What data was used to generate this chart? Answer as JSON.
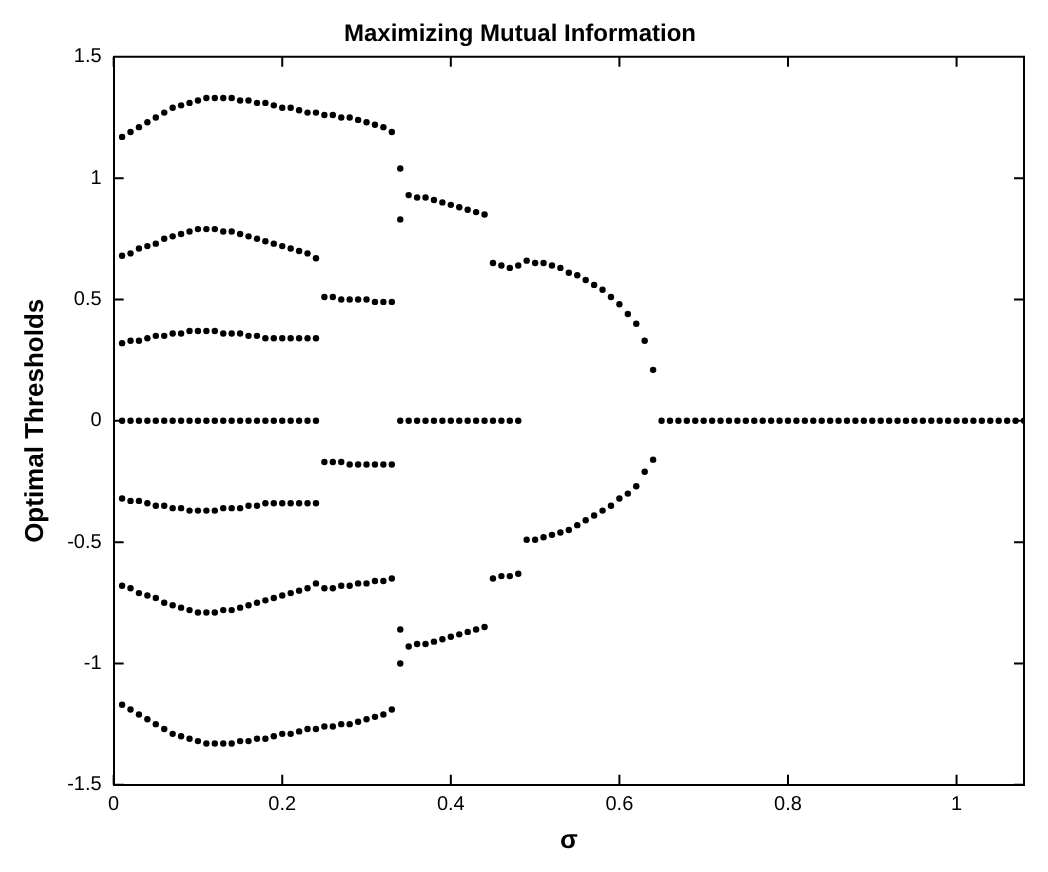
{
  "chart_data": {
    "type": "scatter",
    "title": "Maximizing Mutual Information",
    "xlabel": "σ",
    "ylabel": "Optimal Thresholds",
    "xlim": [
      0,
      1.08
    ],
    "ylim": [
      -1.5,
      1.5
    ],
    "xticks": [
      0,
      0.2,
      0.4,
      0.6,
      0.8,
      1
    ],
    "yticks": [
      -1.5,
      -1,
      -0.5,
      0,
      0.5,
      1,
      1.5
    ],
    "grid": false,
    "legend": false,
    "marker": "circle",
    "series": [
      {
        "color": "#000000",
        "x": [
          0.01,
          0.02,
          0.03,
          0.04,
          0.05,
          0.06,
          0.07,
          0.08,
          0.09,
          0.1,
          0.11,
          0.12,
          0.13,
          0.14,
          0.15,
          0.16,
          0.17,
          0.18,
          0.19,
          0.2,
          0.21,
          0.22,
          0.23,
          0.24,
          0.25,
          0.26,
          0.27,
          0.28,
          0.29,
          0.3,
          0.31,
          0.32,
          0.33
        ],
        "values": [
          1.17,
          1.19,
          1.21,
          1.23,
          1.25,
          1.27,
          1.29,
          1.3,
          1.31,
          1.32,
          1.33,
          1.33,
          1.33,
          1.33,
          1.32,
          1.32,
          1.31,
          1.31,
          1.3,
          1.29,
          1.29,
          1.28,
          1.27,
          1.27,
          1.26,
          1.26,
          1.25,
          1.25,
          1.24,
          1.23,
          1.22,
          1.21,
          1.19
        ]
      },
      {
        "color": "#000000",
        "x": [
          0.01,
          0.02,
          0.03,
          0.04,
          0.05,
          0.06,
          0.07,
          0.08,
          0.09,
          0.1,
          0.11,
          0.12,
          0.13,
          0.14,
          0.15,
          0.16,
          0.17,
          0.18,
          0.19,
          0.2,
          0.21,
          0.22,
          0.23,
          0.24,
          0.25,
          0.26,
          0.27,
          0.28,
          0.29,
          0.3,
          0.31,
          0.32,
          0.33
        ],
        "values": [
          -1.17,
          -1.19,
          -1.21,
          -1.23,
          -1.25,
          -1.27,
          -1.29,
          -1.3,
          -1.31,
          -1.32,
          -1.33,
          -1.33,
          -1.33,
          -1.33,
          -1.32,
          -1.32,
          -1.31,
          -1.31,
          -1.3,
          -1.29,
          -1.29,
          -1.28,
          -1.27,
          -1.27,
          -1.26,
          -1.26,
          -1.25,
          -1.25,
          -1.24,
          -1.23,
          -1.22,
          -1.21,
          -1.19
        ]
      },
      {
        "color": "#000000",
        "x": [
          0.01,
          0.02,
          0.03,
          0.04,
          0.05,
          0.06,
          0.07,
          0.08,
          0.09,
          0.1,
          0.11,
          0.12,
          0.13,
          0.14,
          0.15,
          0.16,
          0.17,
          0.18,
          0.19,
          0.2,
          0.21,
          0.22,
          0.23,
          0.24
        ],
        "values": [
          0.68,
          0.69,
          0.71,
          0.72,
          0.73,
          0.75,
          0.76,
          0.77,
          0.78,
          0.79,
          0.79,
          0.79,
          0.78,
          0.78,
          0.77,
          0.76,
          0.75,
          0.74,
          0.73,
          0.72,
          0.71,
          0.7,
          0.69,
          0.67
        ]
      },
      {
        "color": "#000000",
        "x": [
          0.01,
          0.02,
          0.03,
          0.04,
          0.05,
          0.06,
          0.07,
          0.08,
          0.09,
          0.1,
          0.11,
          0.12,
          0.13,
          0.14,
          0.15,
          0.16,
          0.17,
          0.18,
          0.19,
          0.2,
          0.21,
          0.22,
          0.23,
          0.24
        ],
        "values": [
          -0.68,
          -0.69,
          -0.71,
          -0.72,
          -0.73,
          -0.75,
          -0.76,
          -0.77,
          -0.78,
          -0.79,
          -0.79,
          -0.79,
          -0.78,
          -0.78,
          -0.77,
          -0.76,
          -0.75,
          -0.74,
          -0.73,
          -0.72,
          -0.71,
          -0.7,
          -0.69,
          -0.67
        ]
      },
      {
        "color": "#000000",
        "x": [
          0.01,
          0.02,
          0.03,
          0.04,
          0.05,
          0.06,
          0.07,
          0.08,
          0.09,
          0.1,
          0.11,
          0.12,
          0.13,
          0.14,
          0.15,
          0.16,
          0.17,
          0.18,
          0.19,
          0.2,
          0.21,
          0.22,
          0.23,
          0.24
        ],
        "values": [
          0.32,
          0.33,
          0.33,
          0.34,
          0.35,
          0.35,
          0.36,
          0.36,
          0.37,
          0.37,
          0.37,
          0.37,
          0.36,
          0.36,
          0.36,
          0.35,
          0.35,
          0.34,
          0.34,
          0.34,
          0.34,
          0.34,
          0.34,
          0.34
        ]
      },
      {
        "color": "#000000",
        "x": [
          0.01,
          0.02,
          0.03,
          0.04,
          0.05,
          0.06,
          0.07,
          0.08,
          0.09,
          0.1,
          0.11,
          0.12,
          0.13,
          0.14,
          0.15,
          0.16,
          0.17,
          0.18,
          0.19,
          0.2,
          0.21,
          0.22,
          0.23,
          0.24
        ],
        "values": [
          -0.32,
          -0.33,
          -0.33,
          -0.34,
          -0.35,
          -0.35,
          -0.36,
          -0.36,
          -0.37,
          -0.37,
          -0.37,
          -0.37,
          -0.36,
          -0.36,
          -0.36,
          -0.35,
          -0.35,
          -0.34,
          -0.34,
          -0.34,
          -0.34,
          -0.34,
          -0.34,
          -0.34
        ]
      },
      {
        "color": "#000000",
        "x": [
          0.01,
          0.02,
          0.03,
          0.04,
          0.05,
          0.06,
          0.07,
          0.08,
          0.09,
          0.1,
          0.11,
          0.12,
          0.13,
          0.14,
          0.15,
          0.16,
          0.17,
          0.18,
          0.19,
          0.2,
          0.21,
          0.22,
          0.23,
          0.24
        ],
        "values": [
          0,
          0,
          0,
          0,
          0,
          0,
          0,
          0,
          0,
          0,
          0,
          0,
          0,
          0,
          0,
          0,
          0,
          0,
          0,
          0,
          0,
          0,
          0,
          0
        ]
      },
      {
        "color": "#000000",
        "x": [
          0.25,
          0.26,
          0.27,
          0.28,
          0.29,
          0.3,
          0.31,
          0.32,
          0.33
        ],
        "values": [
          0.51,
          0.51,
          0.5,
          0.5,
          0.5,
          0.5,
          0.49,
          0.49,
          0.49
        ]
      },
      {
        "color": "#000000",
        "x": [
          0.25,
          0.26,
          0.27,
          0.28,
          0.29,
          0.3,
          0.31,
          0.32,
          0.33
        ],
        "values": [
          -0.17,
          -0.17,
          -0.17,
          -0.18,
          -0.18,
          -0.18,
          -0.18,
          -0.18,
          -0.18
        ]
      },
      {
        "color": "#000000",
        "x": [
          0.25,
          0.26,
          0.27,
          0.28,
          0.29,
          0.3,
          0.31,
          0.32,
          0.33
        ],
        "values": [
          -0.69,
          -0.69,
          -0.68,
          -0.68,
          -0.67,
          -0.67,
          -0.66,
          -0.66,
          -0.65
        ]
      },
      {
        "color": "#000000",
        "x": [
          0.34,
          0.34,
          0.34,
          0.34
        ],
        "values": [
          1.04,
          0.83,
          -0.86,
          -1.0
        ]
      },
      {
        "color": "#000000",
        "x": [
          0.35,
          0.36,
          0.37,
          0.38,
          0.39,
          0.4,
          0.41,
          0.42,
          0.43,
          0.44
        ],
        "values": [
          0.93,
          0.92,
          0.92,
          0.91,
          0.9,
          0.89,
          0.88,
          0.87,
          0.86,
          0.85
        ]
      },
      {
        "color": "#000000",
        "x": [
          0.35,
          0.36,
          0.37,
          0.38,
          0.39,
          0.4,
          0.41,
          0.42,
          0.43,
          0.44
        ],
        "values": [
          -0.93,
          -0.92,
          -0.92,
          -0.91,
          -0.9,
          -0.89,
          -0.88,
          -0.87,
          -0.86,
          -0.85
        ]
      },
      {
        "color": "#000000",
        "x": [
          0.34,
          0.35,
          0.36,
          0.37,
          0.38,
          0.39,
          0.4,
          0.41,
          0.42,
          0.43,
          0.44,
          0.45,
          0.46,
          0.47,
          0.48
        ],
        "values": [
          0,
          0,
          0,
          0,
          0,
          0,
          0,
          0,
          0,
          0,
          0,
          0,
          0,
          0,
          0
        ]
      },
      {
        "color": "#000000",
        "x": [
          0.45,
          0.46,
          0.47,
          0.48
        ],
        "values": [
          0.65,
          0.64,
          0.63,
          0.64
        ]
      },
      {
        "color": "#000000",
        "x": [
          0.45,
          0.46,
          0.47,
          0.48
        ],
        "values": [
          -0.65,
          -0.64,
          -0.64,
          -0.63
        ]
      },
      {
        "color": "#000000",
        "x": [
          0.49,
          0.5,
          0.51,
          0.52,
          0.53,
          0.54,
          0.55,
          0.56,
          0.57,
          0.58,
          0.59,
          0.6,
          0.61,
          0.62,
          0.63,
          0.64
        ],
        "values": [
          0.66,
          0.65,
          0.65,
          0.64,
          0.63,
          0.61,
          0.6,
          0.58,
          0.56,
          0.54,
          0.51,
          0.48,
          0.44,
          0.4,
          0.33,
          0.21
        ]
      },
      {
        "color": "#000000",
        "x": [
          0.49,
          0.5,
          0.51,
          0.52,
          0.53,
          0.54,
          0.55,
          0.56,
          0.57,
          0.58,
          0.59,
          0.6,
          0.61,
          0.62,
          0.63,
          0.64
        ],
        "values": [
          -0.49,
          -0.49,
          -0.48,
          -0.47,
          -0.46,
          -0.45,
          -0.43,
          -0.41,
          -0.39,
          -0.37,
          -0.35,
          -0.32,
          -0.3,
          -0.27,
          -0.21,
          -0.16
        ]
      },
      {
        "color": "#000000",
        "x": [
          0.65,
          0.66,
          0.67,
          0.68,
          0.69,
          0.7,
          0.71,
          0.72,
          0.73,
          0.74,
          0.75,
          0.76,
          0.77,
          0.78,
          0.79,
          0.8,
          0.81,
          0.82,
          0.83,
          0.84,
          0.85,
          0.86,
          0.87,
          0.88,
          0.89,
          0.9,
          0.91,
          0.92,
          0.93,
          0.94,
          0.95,
          0.96,
          0.97,
          0.98,
          0.99,
          1.0,
          1.01,
          1.02,
          1.03,
          1.04,
          1.05,
          1.06,
          1.07,
          1.08
        ],
        "values": [
          0,
          0,
          0,
          0,
          0,
          0,
          0,
          0,
          0,
          0,
          0,
          0,
          0,
          0,
          0,
          0,
          0,
          0,
          0,
          0,
          0,
          0,
          0,
          0,
          0,
          0,
          0,
          0,
          0,
          0,
          0,
          0,
          0,
          0,
          0,
          0,
          0,
          0,
          0,
          0,
          0,
          0,
          0,
          0
        ]
      }
    ]
  }
}
